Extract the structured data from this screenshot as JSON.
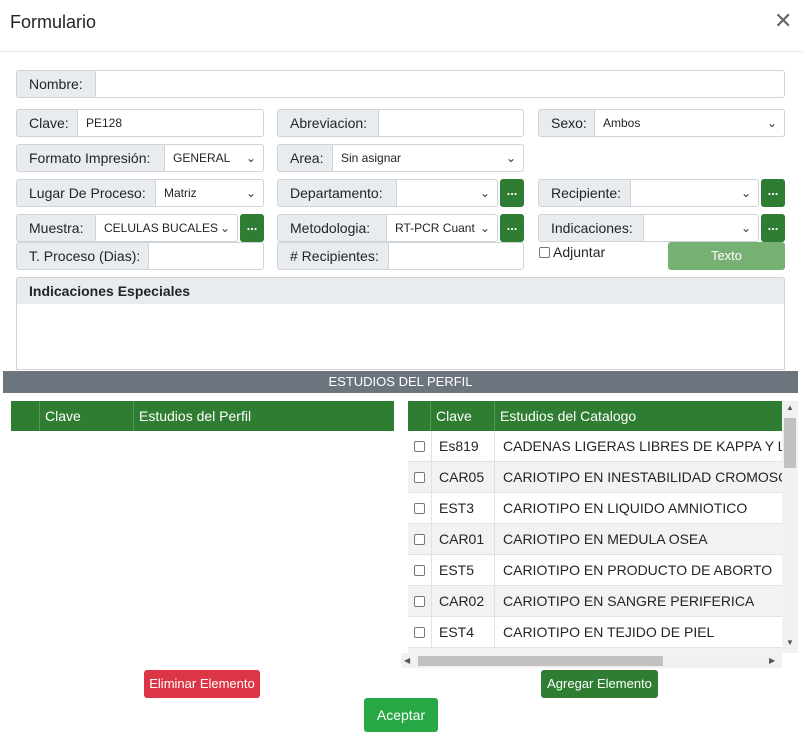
{
  "modal": {
    "title": "Formulario",
    "close_icon": "close-icon"
  },
  "fields": {
    "nombre": {
      "label": "Nombre:",
      "value": ""
    },
    "clave": {
      "label": "Clave:",
      "value": "PE128"
    },
    "abreviacion": {
      "label": "Abreviacion:",
      "value": ""
    },
    "sexo": {
      "label": "Sexo:",
      "value": "Ambos"
    },
    "formato": {
      "label": "Formato Impresión:",
      "value": "GENERAL"
    },
    "area": {
      "label": "Area:",
      "value": "Sin asignar"
    },
    "lugar": {
      "label": "Lugar De Proceso:",
      "value": "Matriz"
    },
    "departamento": {
      "label": "Departamento:",
      "value": ""
    },
    "recipiente": {
      "label": "Recipiente:",
      "value": ""
    },
    "muestra": {
      "label": "Muestra:",
      "value": "CELULAS BUCALES"
    },
    "metodologia": {
      "label": "Metodologia:",
      "value": "RT-PCR Cuant"
    },
    "indicaciones": {
      "label": "Indicaciones:",
      "value": ""
    },
    "tproceso": {
      "label": "T. Proceso (Dias):",
      "value": ""
    },
    "recipientes": {
      "label": "# Recipientes:",
      "value": ""
    }
  },
  "more_label": "...",
  "adjuntar_label": "Adjuntar",
  "texto_button": "Texto",
  "indicaciones_especiales": "Indicaciones Especiales",
  "section_title": "ESTUDIOS DEL PERFIL",
  "perfil_table": {
    "col_clave": "Clave",
    "col_estudios": "Estudios del Perfil"
  },
  "catalogo_table": {
    "col_clave": "Clave",
    "col_estudios": "Estudios del Catalogo",
    "rows": [
      {
        "clave": "Es819",
        "estudio": "CADENAS LIGERAS LIBRES DE KAPPA Y LAMBDA"
      },
      {
        "clave": "CAR05",
        "estudio": "CARIOTIPO EN INESTABILIDAD CROMOSOMICA"
      },
      {
        "clave": "EST3",
        "estudio": "CARIOTIPO EN LIQUIDO AMNIOTICO"
      },
      {
        "clave": "CAR01",
        "estudio": "CARIOTIPO EN MEDULA OSEA"
      },
      {
        "clave": "EST5",
        "estudio": "CARIOTIPO EN PRODUCTO DE ABORTO"
      },
      {
        "clave": "CAR02",
        "estudio": "CARIOTIPO EN SANGRE PERIFERICA"
      },
      {
        "clave": "EST4",
        "estudio": "CARIOTIPO EN TEJIDO DE PIEL"
      }
    ]
  },
  "buttons": {
    "eliminar": "Eliminar Elemento",
    "agregar": "Agregar Elemento",
    "aceptar": "Aceptar"
  }
}
